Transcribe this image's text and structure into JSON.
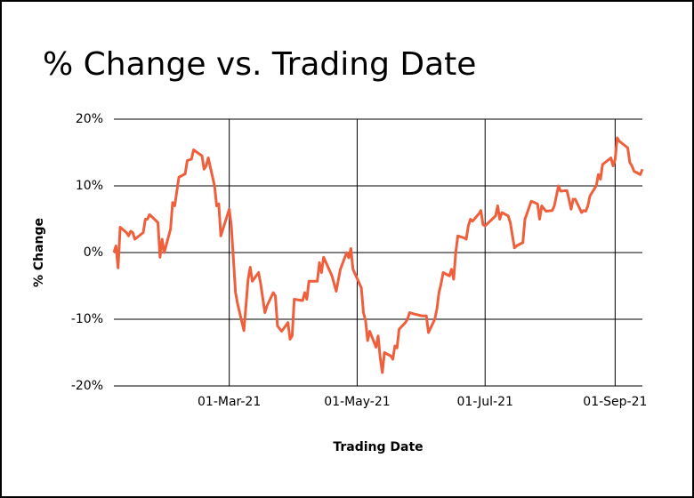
{
  "chart_data": {
    "type": "line",
    "title": "% Change vs. Trading Date",
    "x_label": "Trading Date",
    "y_label": "% Change",
    "color": "#ef5f3c",
    "grid": true,
    "xlim": [
      "2021-01-05",
      "2021-09-14"
    ],
    "xticks": [
      {
        "value": "2021-03-01",
        "label": "01-Mar-21"
      },
      {
        "value": "2021-05-01",
        "label": "01-May-21"
      },
      {
        "value": "2021-07-01",
        "label": "01-Jul-21"
      },
      {
        "value": "2021-09-01",
        "label": "01-Sep-21"
      }
    ],
    "ylim": [
      -20,
      20
    ],
    "yticks": [
      {
        "value": -20,
        "label": "-20%"
      },
      {
        "value": -10,
        "label": "-10%"
      },
      {
        "value": 0,
        "label": "0%"
      },
      {
        "value": 10,
        "label": "10%"
      },
      {
        "value": 20,
        "label": "20%"
      }
    ],
    "x": [
      "2021-01-05",
      "2021-01-06",
      "2021-01-07",
      "2021-01-08",
      "2021-01-11",
      "2021-01-12",
      "2021-01-13",
      "2021-01-14",
      "2021-01-15",
      "2021-01-19",
      "2021-01-20",
      "2021-01-21",
      "2021-01-22",
      "2021-01-26",
      "2021-01-27",
      "2021-01-28",
      "2021-01-29",
      "2021-02-01",
      "2021-02-02",
      "2021-02-03",
      "2021-02-05",
      "2021-02-08",
      "2021-02-09",
      "2021-02-11",
      "2021-02-12",
      "2021-02-16",
      "2021-02-17",
      "2021-02-18",
      "2021-02-19",
      "2021-02-22",
      "2021-02-23",
      "2021-02-24",
      "2021-02-25",
      "2021-03-01",
      "2021-03-02",
      "2021-03-04",
      "2021-03-05",
      "2021-03-08",
      "2021-03-10",
      "2021-03-11",
      "2021-03-12",
      "2021-03-15",
      "2021-03-16",
      "2021-03-18",
      "2021-03-19",
      "2021-03-22",
      "2021-03-23",
      "2021-03-24",
      "2021-03-26",
      "2021-03-29",
      "2021-03-30",
      "2021-03-31",
      "2021-04-01",
      "2021-04-05",
      "2021-04-06",
      "2021-04-07",
      "2021-04-08",
      "2021-04-12",
      "2021-04-13",
      "2021-04-14",
      "2021-04-15",
      "2021-04-19",
      "2021-04-21",
      "2021-04-23",
      "2021-04-26",
      "2021-04-27",
      "2021-04-28",
      "2021-04-29",
      "2021-05-03",
      "2021-05-04",
      "2021-05-05",
      "2021-05-06",
      "2021-05-07",
      "2021-05-10",
      "2021-05-11",
      "2021-05-12",
      "2021-05-13",
      "2021-05-14",
      "2021-05-17",
      "2021-05-18",
      "2021-05-19",
      "2021-05-20",
      "2021-05-21",
      "2021-05-24",
      "2021-05-25",
      "2021-05-26",
      "2021-05-28",
      "2021-06-01",
      "2021-06-03",
      "2021-06-04",
      "2021-06-07",
      "2021-06-08",
      "2021-06-09",
      "2021-06-10",
      "2021-06-11",
      "2021-06-14",
      "2021-06-15",
      "2021-06-16",
      "2021-06-17",
      "2021-06-18",
      "2021-06-21",
      "2021-06-22",
      "2021-06-23",
      "2021-06-24",
      "2021-06-25",
      "2021-06-28",
      "2021-06-29",
      "2021-06-30",
      "2021-07-01",
      "2021-07-06",
      "2021-07-07",
      "2021-07-08",
      "2021-07-09",
      "2021-07-12",
      "2021-07-13",
      "2021-07-15",
      "2021-07-16",
      "2021-07-19",
      "2021-07-20",
      "2021-07-23",
      "2021-07-26",
      "2021-07-27",
      "2021-07-28",
      "2021-07-30",
      "2021-08-02",
      "2021-08-03",
      "2021-08-05",
      "2021-08-06",
      "2021-08-09",
      "2021-08-10",
      "2021-08-11",
      "2021-08-12",
      "2021-08-13",
      "2021-08-16",
      "2021-08-17",
      "2021-08-18",
      "2021-08-19",
      "2021-08-20",
      "2021-08-23",
      "2021-08-24",
      "2021-08-25",
      "2021-08-26",
      "2021-08-30",
      "2021-08-31",
      "2021-09-01",
      "2021-09-02",
      "2021-09-03",
      "2021-09-07",
      "2021-09-08",
      "2021-09-09",
      "2021-09-10",
      "2021-09-13",
      "2021-09-14"
    ],
    "values": [
      0,
      1,
      -2.3,
      3.8,
      3,
      2.5,
      3.2,
      3,
      2,
      3,
      5,
      5,
      5.7,
      4.5,
      -0.7,
      2,
      0,
      3.5,
      7.5,
      7,
      11.3,
      11.8,
      13.8,
      14,
      15.4,
      14.5,
      12.5,
      13,
      14.2,
      10,
      7,
      7.3,
      2.5,
      6.5,
      4,
      -6,
      -7.7,
      -11.7,
      -4,
      -2.2,
      -4.3,
      -3,
      -4.7,
      -9,
      -8,
      -6,
      -6.5,
      -11,
      -11.8,
      -10.5,
      -13,
      -12.5,
      -7,
      -7.2,
      -6,
      -7,
      -4.3,
      -4.3,
      -1.5,
      -3,
      -0.7,
      -3.5,
      -5.8,
      -2.5,
      0,
      -0.8,
      0.6,
      -2.5,
      -5.3,
      -9,
      -10.2,
      -13.2,
      -11.8,
      -14.2,
      -12.5,
      -15.8,
      -18,
      -15,
      -15.5,
      -16,
      -14,
      -14.3,
      -11.5,
      -10.5,
      -10,
      -9,
      -9.2,
      -9.5,
      -9.5,
      -12,
      -10,
      -8.5,
      -6,
      -4.7,
      -3,
      -3.5,
      -2.5,
      -4,
      0,
      2.5,
      2.2,
      2,
      4,
      5,
      4.7,
      5.8,
      6.3,
      4.2,
      4,
      5.5,
      7,
      5,
      6,
      5.5,
      4.5,
      0.7,
      1,
      1.5,
      5,
      7.7,
      7.3,
      5,
      7,
      6.2,
      6.3,
      7,
      10,
      9.2,
      9.3,
      8,
      6.5,
      8,
      8,
      6,
      6.3,
      6.2,
      7,
      8.5,
      10,
      11.7,
      11,
      13.2,
      14.2,
      13,
      14,
      17.2,
      16.7,
      15.7,
      13.5,
      13,
      12.2,
      11.7,
      12.5
    ]
  }
}
